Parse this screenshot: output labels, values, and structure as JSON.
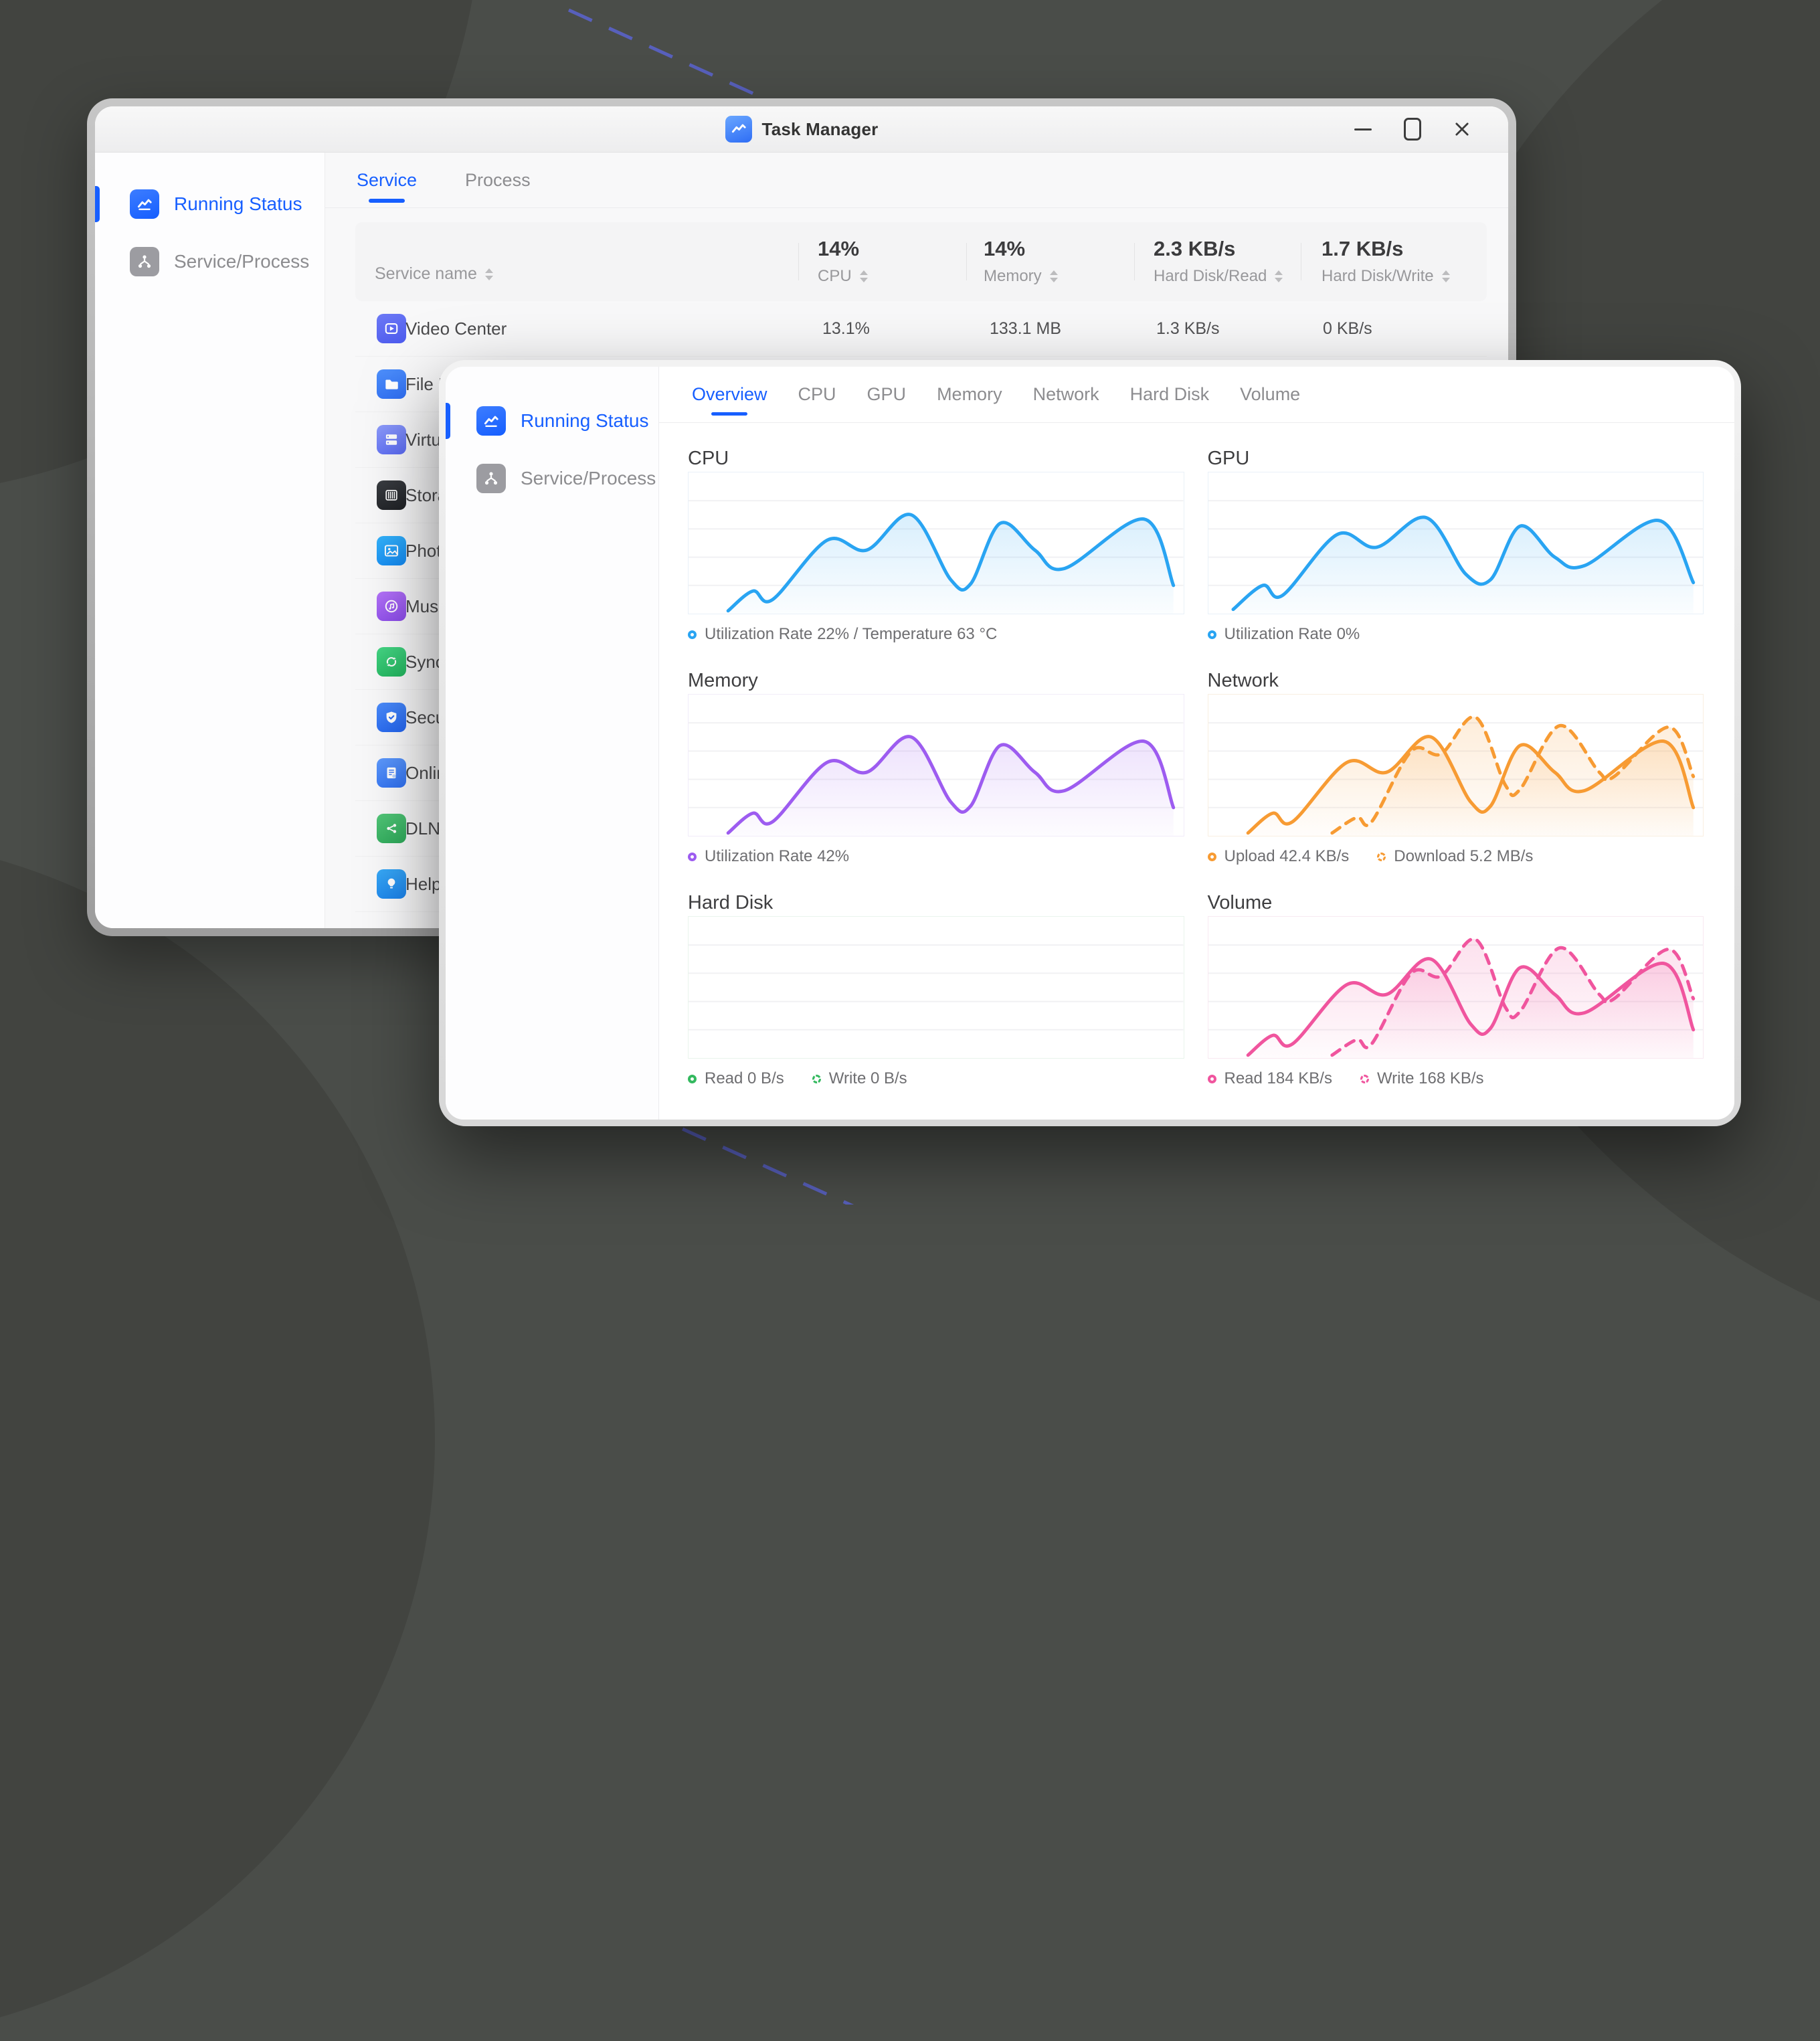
{
  "back_window": {
    "titlebar": {
      "title": "Task Manager",
      "app_icon": "task-manager-chart-icon",
      "controls": [
        "minimize",
        "maximize",
        "close"
      ]
    },
    "sidebar": {
      "items": [
        {
          "label": "Running Status",
          "icon": "line-chart-icon",
          "active": true
        },
        {
          "label": "Service/Process",
          "icon": "org-tree-icon",
          "active": false
        }
      ]
    },
    "tabs": [
      {
        "label": "Service",
        "active": true
      },
      {
        "label": "Process",
        "active": false
      }
    ],
    "table": {
      "columns": [
        {
          "name": "Service name",
          "summary": ""
        },
        {
          "name": "CPU",
          "summary": "14%"
        },
        {
          "name": "Memory",
          "summary": "14%"
        },
        {
          "name": "Hard Disk/Read",
          "summary": "2.3 KB/s"
        },
        {
          "name": "Hard Disk/Write",
          "summary": "1.7 KB/s"
        }
      ],
      "rows": [
        {
          "name": "Video Center",
          "icon": "video-center-icon",
          "cpu": "13.1%",
          "memory": "133.1 MB",
          "read": "1.3 KB/s",
          "write": "0 KB/s"
        },
        {
          "name": "File N",
          "icon": "file-manager-icon"
        },
        {
          "name": "Virtu",
          "icon": "virtual-machine-icon"
        },
        {
          "name": "Stora",
          "icon": "storage-manager-icon"
        },
        {
          "name": "Phot",
          "icon": "photos-icon"
        },
        {
          "name": "Musi",
          "icon": "music-icon"
        },
        {
          "name": "Sync",
          "icon": "sync-icon"
        },
        {
          "name": "Secu",
          "icon": "security-icon"
        },
        {
          "name": "Onlin",
          "icon": "online-doc-icon"
        },
        {
          "name": "DLNA",
          "icon": "dlna-icon"
        },
        {
          "name": "Help",
          "icon": "help-icon"
        }
      ]
    }
  },
  "front_window": {
    "sidebar": {
      "items": [
        {
          "label": "Running Status",
          "icon": "line-chart-icon",
          "active": true
        },
        {
          "label": "Service/Process",
          "icon": "org-tree-icon",
          "active": false
        }
      ]
    },
    "tabs": [
      {
        "label": "Overview",
        "active": true
      },
      {
        "label": "CPU",
        "active": false
      },
      {
        "label": "GPU",
        "active": false
      },
      {
        "label": "Memory",
        "active": false
      },
      {
        "label": "Network",
        "active": false
      },
      {
        "label": "Hard Disk",
        "active": false
      },
      {
        "label": "Volume",
        "active": false
      }
    ]
  },
  "colors": {
    "accent_blue": "#175fff",
    "cpu_line": "#29a4f2",
    "memory_line": "#9d5cf0",
    "network_line": "#f79b33",
    "hard_disk_line": "#34b95f",
    "volume_line": "#f0559e",
    "desktop": "#4a4d49",
    "desktop_dash_line": "#5a63c9"
  },
  "chart_data": [
    {
      "id": "cpu",
      "type": "area",
      "title": "CPU",
      "color": "#29a4f2",
      "border": "#e9f1f8",
      "ylim": [
        0,
        100
      ],
      "grid": true,
      "legend_position": "bottom",
      "series": [
        {
          "name": "Utilization",
          "style": "solid",
          "x": [
            8,
            13,
            17,
            28,
            36,
            45,
            53,
            57,
            63,
            70,
            76,
            92,
            98
          ],
          "values": [
            2,
            16,
            10,
            52,
            45,
            70,
            24,
            21,
            64,
            45,
            32,
            67,
            20
          ]
        }
      ],
      "legend": [
        {
          "label": "Utilization Rate 22% / Temperature 63 °C",
          "style": "solid"
        }
      ]
    },
    {
      "id": "gpu",
      "type": "area",
      "title": "GPU",
      "color": "#29a4f2",
      "border": "#e9f1f8",
      "ylim": [
        0,
        100
      ],
      "grid": true,
      "legend_position": "bottom",
      "series": [
        {
          "name": "Utilization",
          "style": "solid",
          "x": [
            5,
            11,
            15,
            26,
            34,
            44,
            52,
            57,
            63,
            70,
            76,
            91,
            98
          ],
          "values": [
            3,
            20,
            13,
            56,
            47,
            68,
            28,
            24,
            62,
            40,
            34,
            66,
            22
          ]
        }
      ],
      "legend": [
        {
          "label": "Utilization Rate 0%",
          "style": "solid"
        }
      ]
    },
    {
      "id": "memory",
      "type": "area",
      "title": "Memory",
      "color": "#9d5cf0",
      "border": "#f1ecf9",
      "ylim": [
        0,
        100
      ],
      "grid": true,
      "legend_position": "bottom",
      "series": [
        {
          "name": "Utilization",
          "style": "solid",
          "x": [
            8,
            13,
            17,
            28,
            36,
            45,
            53,
            57,
            63,
            70,
            76,
            92,
            98
          ],
          "values": [
            2,
            16,
            10,
            52,
            45,
            70,
            24,
            21,
            64,
            45,
            32,
            67,
            20
          ]
        }
      ],
      "legend": [
        {
          "label": "Utilization Rate 42%",
          "style": "solid"
        }
      ]
    },
    {
      "id": "network",
      "type": "area",
      "title": "Network",
      "color": "#f79b33",
      "border": "#f9efe1",
      "ylim": [
        0,
        100
      ],
      "grid": true,
      "legend_position": "bottom",
      "series": [
        {
          "name": "Upload",
          "style": "solid",
          "x": [
            8,
            13,
            17,
            28,
            36,
            45,
            53,
            57,
            63,
            70,
            76,
            92,
            98
          ],
          "values": [
            2,
            16,
            10,
            52,
            45,
            70,
            24,
            21,
            64,
            45,
            32,
            67,
            20
          ]
        },
        {
          "name": "Download",
          "style": "dashed",
          "x": [
            25,
            30,
            33,
            41,
            47,
            54,
            60,
            63,
            71,
            79,
            82,
            93,
            98
          ],
          "values": [
            2,
            13,
            10,
            60,
            58,
            84,
            36,
            33,
            78,
            45,
            42,
            77,
            42
          ]
        }
      ],
      "legend": [
        {
          "label": "Upload 42.4 KB/s",
          "style": "solid"
        },
        {
          "label": "Download 5.2 MB/s",
          "style": "dashed"
        }
      ]
    },
    {
      "id": "hard_disk",
      "type": "area",
      "title": "Hard Disk",
      "color": "#34b95f",
      "border": "#e9f4ec",
      "ylim": [
        0,
        100
      ],
      "grid": true,
      "legend_position": "bottom",
      "series": [
        {
          "name": "Read",
          "style": "solid",
          "x": [
            0,
            100
          ],
          "values": [
            0,
            0
          ]
        },
        {
          "name": "Write",
          "style": "dashed",
          "x": [
            0,
            100
          ],
          "values": [
            0,
            0
          ]
        }
      ],
      "legend": [
        {
          "label": "Read 0 B/s",
          "style": "solid"
        },
        {
          "label": "Write 0 B/s",
          "style": "dashed"
        }
      ]
    },
    {
      "id": "volume",
      "type": "area",
      "title": "Volume",
      "color": "#f0559e",
      "border": "#f8e9f1",
      "ylim": [
        0,
        100
      ],
      "grid": true,
      "legend_position": "bottom",
      "series": [
        {
          "name": "Read",
          "style": "solid",
          "x": [
            8,
            13,
            17,
            28,
            36,
            45,
            53,
            57,
            63,
            70,
            76,
            92,
            98
          ],
          "values": [
            2,
            16,
            10,
            52,
            45,
            70,
            24,
            21,
            64,
            45,
            32,
            67,
            20
          ]
        },
        {
          "name": "Write",
          "style": "dashed",
          "x": [
            25,
            30,
            33,
            41,
            47,
            54,
            60,
            63,
            71,
            79,
            82,
            93,
            98
          ],
          "values": [
            2,
            13,
            10,
            60,
            58,
            84,
            36,
            33,
            78,
            45,
            42,
            77,
            42
          ]
        }
      ],
      "legend": [
        {
          "label": "Read 184 KB/s",
          "style": "solid"
        },
        {
          "label": "Write 168 KB/s",
          "style": "dashed"
        }
      ]
    }
  ]
}
